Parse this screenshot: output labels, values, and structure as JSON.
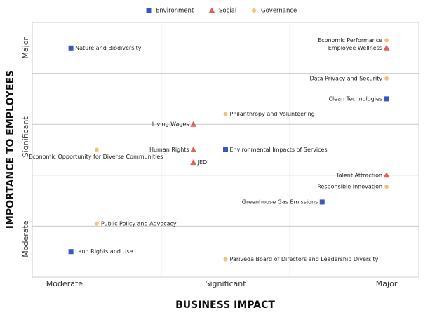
{
  "chart_data": {
    "type": "scatter",
    "xlabel": "BUSINESS IMPACT",
    "ylabel": "IMPORTANCE TO EMPLOYEES",
    "xlim": [
      0,
      12
    ],
    "ylim": [
      0,
      10
    ],
    "xticks": [
      {
        "value": 1,
        "label": "Moderate"
      },
      {
        "value": 6,
        "label": "Significant"
      },
      {
        "value": 11,
        "label": "Major"
      }
    ],
    "yticks": [
      {
        "value": 1.5,
        "label": "Moderate"
      },
      {
        "value": 5.5,
        "label": "Significant"
      },
      {
        "value": 9,
        "label": "Major"
      }
    ],
    "xgrid": [
      4,
      8
    ],
    "ygrid": [
      2,
      4,
      6,
      8
    ],
    "legend": "top",
    "series": [
      {
        "name": "Environment",
        "color": "#3b54c4",
        "marker": "square",
        "labels": [
          "Nature and Biodiversity",
          "Clean Technologies",
          "Environmental Impacts of Services",
          "Greenhouse Gas Emissions",
          "Land Rights and Use"
        ],
        "x": [
          1.2,
          11.0,
          6.0,
          9.0,
          1.2
        ],
        "y": [
          9.0,
          7.0,
          5.0,
          2.95,
          1.0
        ]
      },
      {
        "name": "Social",
        "color": "#e0605a",
        "marker": "triangle",
        "labels": [
          "Employee Wellness",
          "Living Wages",
          "Human Rights",
          "JEDI",
          "Talent Attraction"
        ],
        "x": [
          11.0,
          5.0,
          5.0,
          5.0,
          11.0
        ],
        "y": [
          9.0,
          6.0,
          5.0,
          4.5,
          4.0
        ]
      },
      {
        "name": "Governance",
        "color": "#f1c27d",
        "marker": "circle",
        "labels": [
          "Economic Performance",
          "Data Privacy and Security",
          "Philanthropy and Volunteering",
          "Economic Opportunity for Diverse Communities",
          "Responsible Innovation",
          "Public Policy and Advocacy",
          "Pariveda Board of Directors and Leadership Diversity"
        ],
        "x": [
          11.0,
          11.0,
          6.0,
          2.0,
          11.0,
          2.0,
          6.0
        ],
        "y": [
          9.3,
          7.8,
          6.4,
          5.0,
          3.55,
          2.1,
          0.7
        ]
      }
    ]
  }
}
